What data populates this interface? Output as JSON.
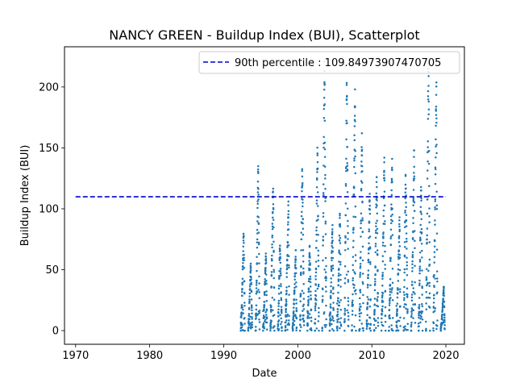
{
  "chart_data": {
    "type": "scatter",
    "title": "NANCY GREEN - Buildup Index (BUI), Scatterplot",
    "xlabel": "Date",
    "ylabel": "Buildup Index (BUI)",
    "xlim": [
      1968.5,
      2022.5
    ],
    "ylim": [
      -11.2,
      233
    ],
    "xticks": [
      1970,
      1980,
      1990,
      2000,
      2010,
      2020
    ],
    "yticks": [
      0,
      50,
      100,
      150,
      200
    ],
    "grid": false,
    "legend_position": "top-right",
    "colors": {
      "points": "#1f77b4",
      "reference_line": "#0000cd"
    },
    "reference_line": {
      "label": "90th percentile : 109.84973907470705",
      "value": 109.84973907470705,
      "x_range": [
        1970,
        2020
      ],
      "style": "dashed"
    },
    "seasons": [
      {
        "year": 1992,
        "peak": 81
      },
      {
        "year": 1993,
        "peak": 55
      },
      {
        "year": 1994,
        "peak": 135
      },
      {
        "year": 1995,
        "peak": 65
      },
      {
        "year": 1996,
        "peak": 118
      },
      {
        "year": 1997,
        "peak": 72
      },
      {
        "year": 1998,
        "peak": 107
      },
      {
        "year": 1999,
        "peak": 66
      },
      {
        "year": 2000,
        "peak": 135
      },
      {
        "year": 2001,
        "peak": 70
      },
      {
        "year": 2002,
        "peak": 153
      },
      {
        "year": 2003,
        "peak": 221
      },
      {
        "year": 2004,
        "peak": 88
      },
      {
        "year": 2005,
        "peak": 96
      },
      {
        "year": 2006,
        "peak": 205
      },
      {
        "year": 2007,
        "peak": 198
      },
      {
        "year": 2008,
        "peak": 162
      },
      {
        "year": 2009,
        "peak": 115
      },
      {
        "year": 2010,
        "peak": 126
      },
      {
        "year": 2011,
        "peak": 142
      },
      {
        "year": 2012,
        "peak": 141
      },
      {
        "year": 2013,
        "peak": 93
      },
      {
        "year": 2014,
        "peak": 128
      },
      {
        "year": 2015,
        "peak": 148
      },
      {
        "year": 2016,
        "peak": 119
      },
      {
        "year": 2017,
        "peak": 222
      },
      {
        "year": 2018,
        "peak": 207
      },
      {
        "year": 2019,
        "peak": 36
      }
    ]
  }
}
